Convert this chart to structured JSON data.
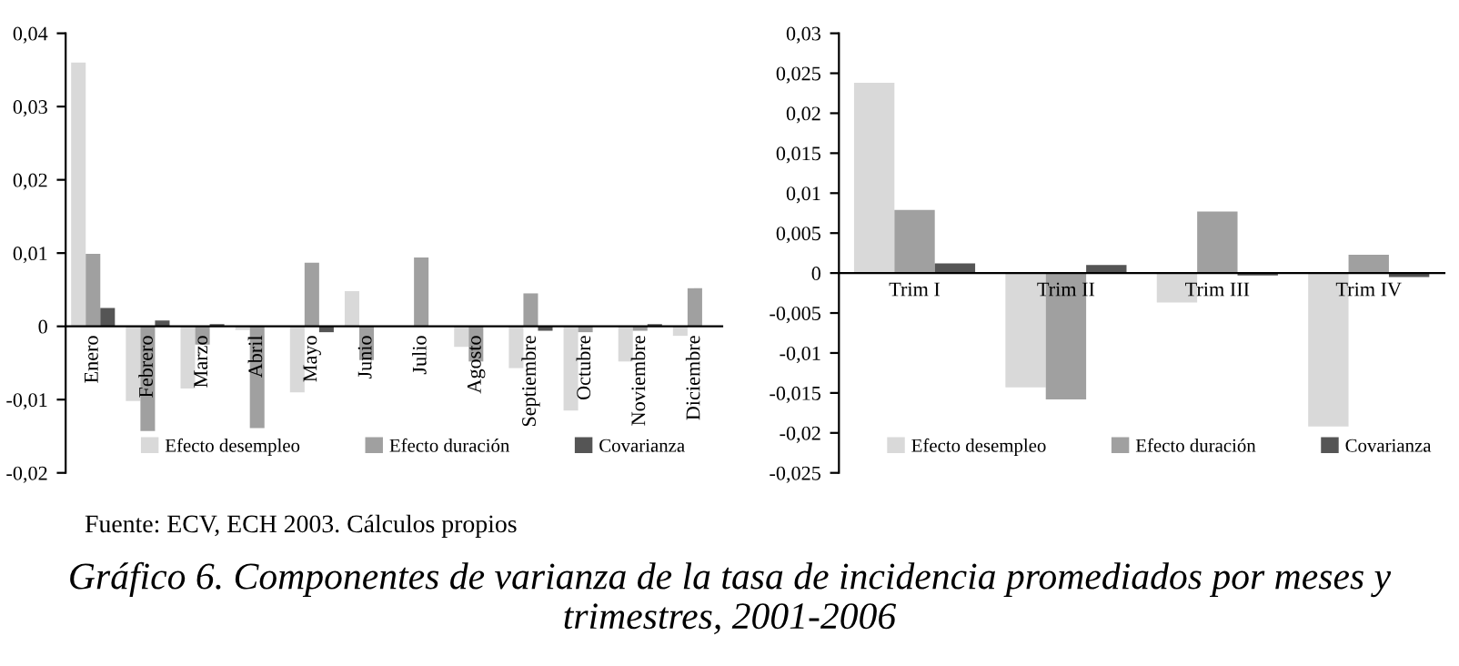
{
  "chart_data": [
    {
      "type": "bar",
      "categories": [
        "Enero",
        "Febrero",
        "Marzo",
        "Abril",
        "Mayo",
        "Junio",
        "Julio",
        "Agosto",
        "Septiembre",
        "Octubre",
        "Noviembre",
        "Diciembre"
      ],
      "series": [
        {
          "name": "Efecto desempleo",
          "color": "#d9d9d9",
          "values": [
            0.036,
            -0.0102,
            -0.0085,
            -0.0005,
            -0.009,
            0.0048,
            null,
            -0.0028,
            -0.0057,
            -0.0115,
            -0.0048,
            -0.0013
          ]
        },
        {
          "name": "Efecto duración",
          "color": "#a0a0a0",
          "values": [
            0.0099,
            -0.0143,
            -0.0025,
            -0.0139,
            0.0087,
            -0.0046,
            0.0094,
            -0.0048,
            0.0045,
            -0.0008,
            -0.0006,
            0.0052
          ]
        },
        {
          "name": "Covarianza",
          "color": "#555555",
          "values": [
            0.0025,
            0.0008,
            0.0003,
            null,
            -0.0008,
            null,
            0,
            0,
            -0.0006,
            0,
            0.0003,
            0
          ]
        }
      ],
      "ylim": [
        -0.02,
        0.04
      ],
      "yticks": [
        {
          "value": -0.02,
          "label": "-0,02"
        },
        {
          "value": -0.01,
          "label": "-0,01"
        },
        0,
        {
          "value": 0.01,
          "label": "0,01"
        },
        {
          "value": 0.02,
          "label": "0,02"
        },
        {
          "value": 0.03,
          "label": "0,03"
        },
        {
          "value": 0.04,
          "label": "0,04"
        }
      ],
      "legend": "bottom",
      "grid": false,
      "annotations": [
        "Fuente: ECV, ECH 2003. Cálculos propios",
        "Gráfico 6. Componentes de varianza de la tasa de incidencia promediados por meses y trimestres, 2001-2006"
      ]
    },
    {
      "type": "bar",
      "categories": [
        "Trim I",
        "Trim II",
        "Trim III",
        "Trim IV"
      ],
      "series": [
        {
          "name": "Efecto desempleo",
          "color": "#d9d9d9",
          "values": [
            0.0238,
            -0.0143,
            -0.0037,
            -0.0192
          ]
        },
        {
          "name": "Efecto duración",
          "color": "#a0a0a0",
          "values": [
            0.0079,
            -0.0158,
            0.0077,
            0.0023
          ]
        },
        {
          "name": "Covarianza",
          "color": "#555555",
          "values": [
            0.0012,
            0.001,
            -0.0003,
            -0.0005
          ]
        }
      ],
      "ylim": [
        -0.025,
        0.03
      ],
      "yticks": [
        {
          "value": -0.025,
          "label": "-0,025"
        },
        {
          "value": -0.02,
          "label": "-0,02"
        },
        {
          "value": -0.015,
          "label": "-0,015"
        },
        {
          "value": -0.01,
          "label": "-0,01"
        },
        {
          "value": -0.005,
          "label": "-0,005"
        },
        0,
        {
          "value": 0.005,
          "label": "0,005"
        },
        {
          "value": 0.01,
          "label": "0,01"
        },
        {
          "value": 0.015,
          "label": "0,015"
        },
        {
          "value": 0.02,
          "label": "0,02"
        },
        {
          "value": 0.025,
          "label": "0,025"
        },
        {
          "value": 0.03,
          "label": "0,03"
        }
      ],
      "legend": "bottom",
      "grid": false
    }
  ]
}
